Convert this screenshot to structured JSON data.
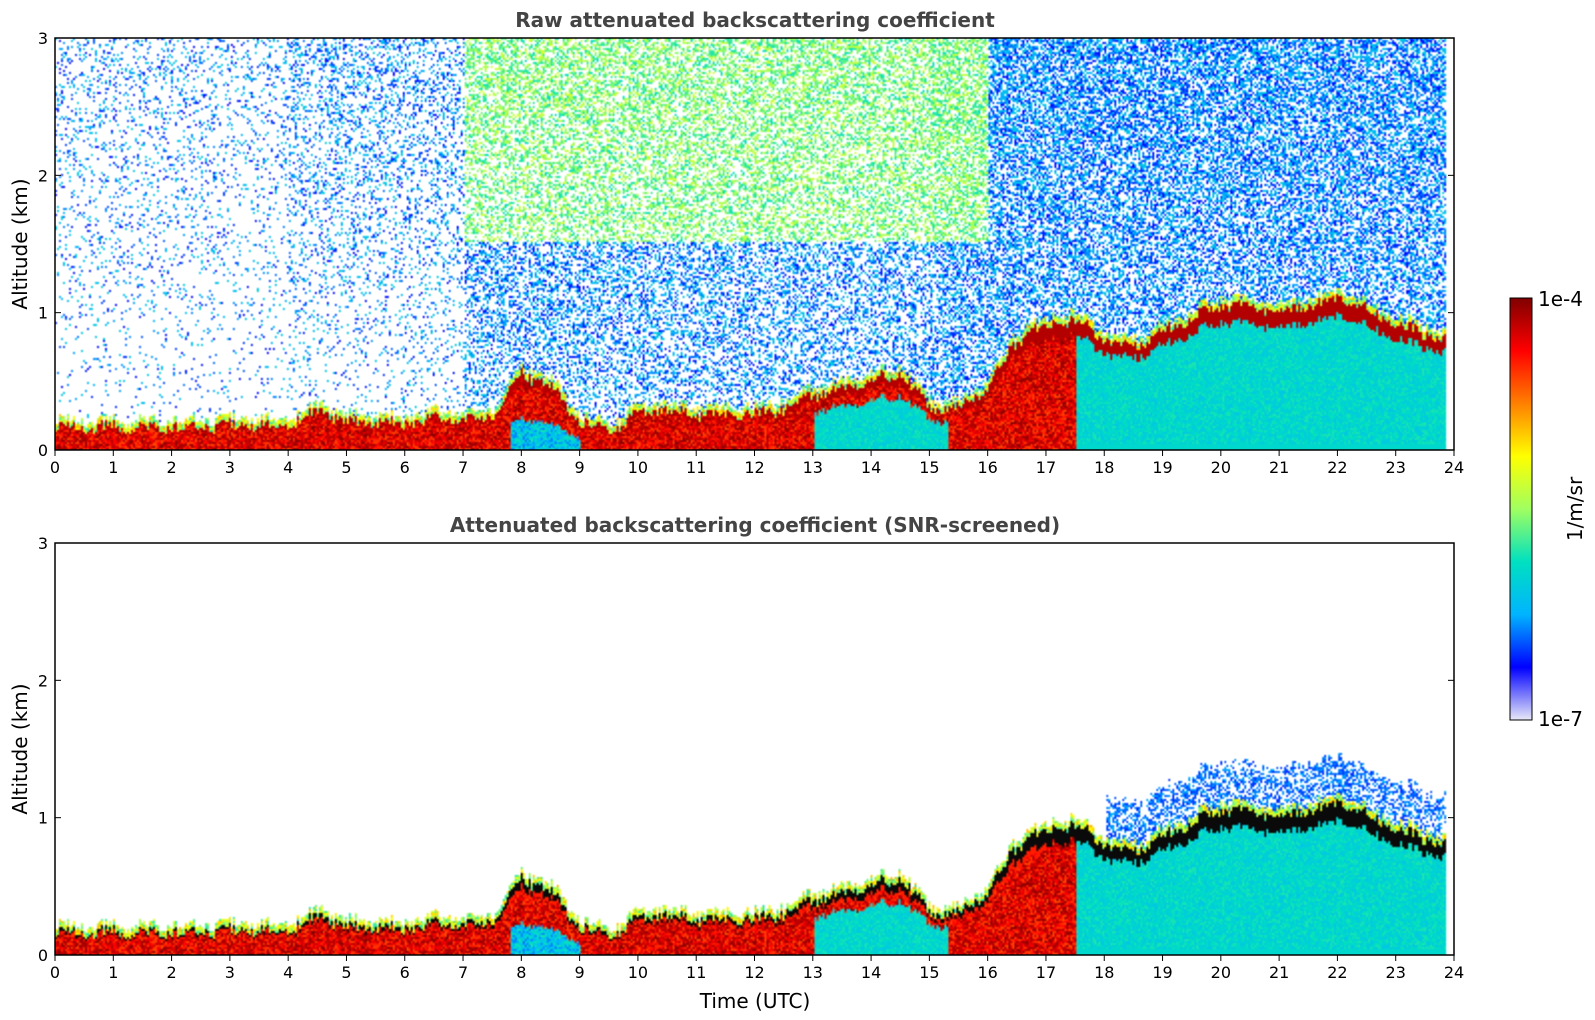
{
  "chart_data": [
    {
      "type": "heatmap",
      "title": "Raw attenuated backscattering coefficient",
      "xlabel": "",
      "ylabel": "Altitude (km)",
      "xlim": [
        0,
        24
      ],
      "ylim": [
        0,
        3
      ],
      "xticks": [
        "0",
        "1",
        "2",
        "3",
        "4",
        "5",
        "6",
        "7",
        "8",
        "9",
        "10",
        "11",
        "12",
        "13",
        "14",
        "15",
        "16",
        "17",
        "18",
        "19",
        "20",
        "21",
        "22",
        "23",
        "24"
      ],
      "yticks": [
        "0",
        "1",
        "2",
        "3"
      ],
      "screened": false
    },
    {
      "type": "heatmap",
      "title": "Attenuated backscattering coefficient (SNR-screened)",
      "xlabel": "Time (UTC)",
      "ylabel": "Altitude (km)",
      "xlim": [
        0,
        24
      ],
      "ylim": [
        0,
        3
      ],
      "xticks": [
        "0",
        "1",
        "2",
        "3",
        "4",
        "5",
        "6",
        "7",
        "8",
        "9",
        "10",
        "11",
        "12",
        "13",
        "14",
        "15",
        "16",
        "17",
        "18",
        "19",
        "20",
        "21",
        "22",
        "23",
        "24"
      ],
      "yticks": [
        "0",
        "1",
        "2",
        "3"
      ],
      "screened": true
    }
  ],
  "colorbar": {
    "label": "1/m/sr",
    "max_label": "1e-4",
    "min_label": "1e-7",
    "scale": "log",
    "colormap": [
      "#e8e8f8",
      "#0000ff",
      "#00b4ff",
      "#00e0c0",
      "#a0ff60",
      "#ffff00",
      "#ff8000",
      "#ff0000",
      "#800000"
    ]
  },
  "layers": {
    "boundary_layer": [
      [
        0,
        0.16
      ],
      [
        2,
        0.16
      ],
      [
        4,
        0.17
      ],
      [
        4.5,
        0.28
      ],
      [
        5,
        0.2
      ],
      [
        6,
        0.18
      ],
      [
        6.5,
        0.22
      ],
      [
        7,
        0.22
      ],
      [
        7.5,
        0.25
      ],
      [
        8,
        0.55
      ],
      [
        8.5,
        0.45
      ],
      [
        9,
        0.2
      ],
      [
        9.5,
        0.12
      ],
      [
        10,
        0.25
      ],
      [
        10.5,
        0.28
      ],
      [
        11,
        0.25
      ],
      [
        12,
        0.25
      ],
      [
        12.5,
        0.3
      ],
      [
        13,
        0.4
      ],
      [
        13.5,
        0.42
      ],
      [
        14,
        0.5
      ],
      [
        14.5,
        0.55
      ],
      [
        15,
        0.3
      ],
      [
        15.5,
        0.3
      ],
      [
        16,
        0.45
      ],
      [
        16.5,
        0.8
      ],
      [
        17,
        0.9
      ],
      [
        17.5,
        0.95
      ],
      [
        18,
        0.8
      ],
      [
        18.5,
        0.75
      ],
      [
        19,
        0.85
      ],
      [
        19.5,
        0.95
      ],
      [
        20,
        1.05
      ],
      [
        20.5,
        1.05
      ],
      [
        21,
        1.0
      ],
      [
        22,
        1.1
      ],
      [
        23,
        0.9
      ],
      [
        23.8,
        0.8
      ]
    ]
  }
}
